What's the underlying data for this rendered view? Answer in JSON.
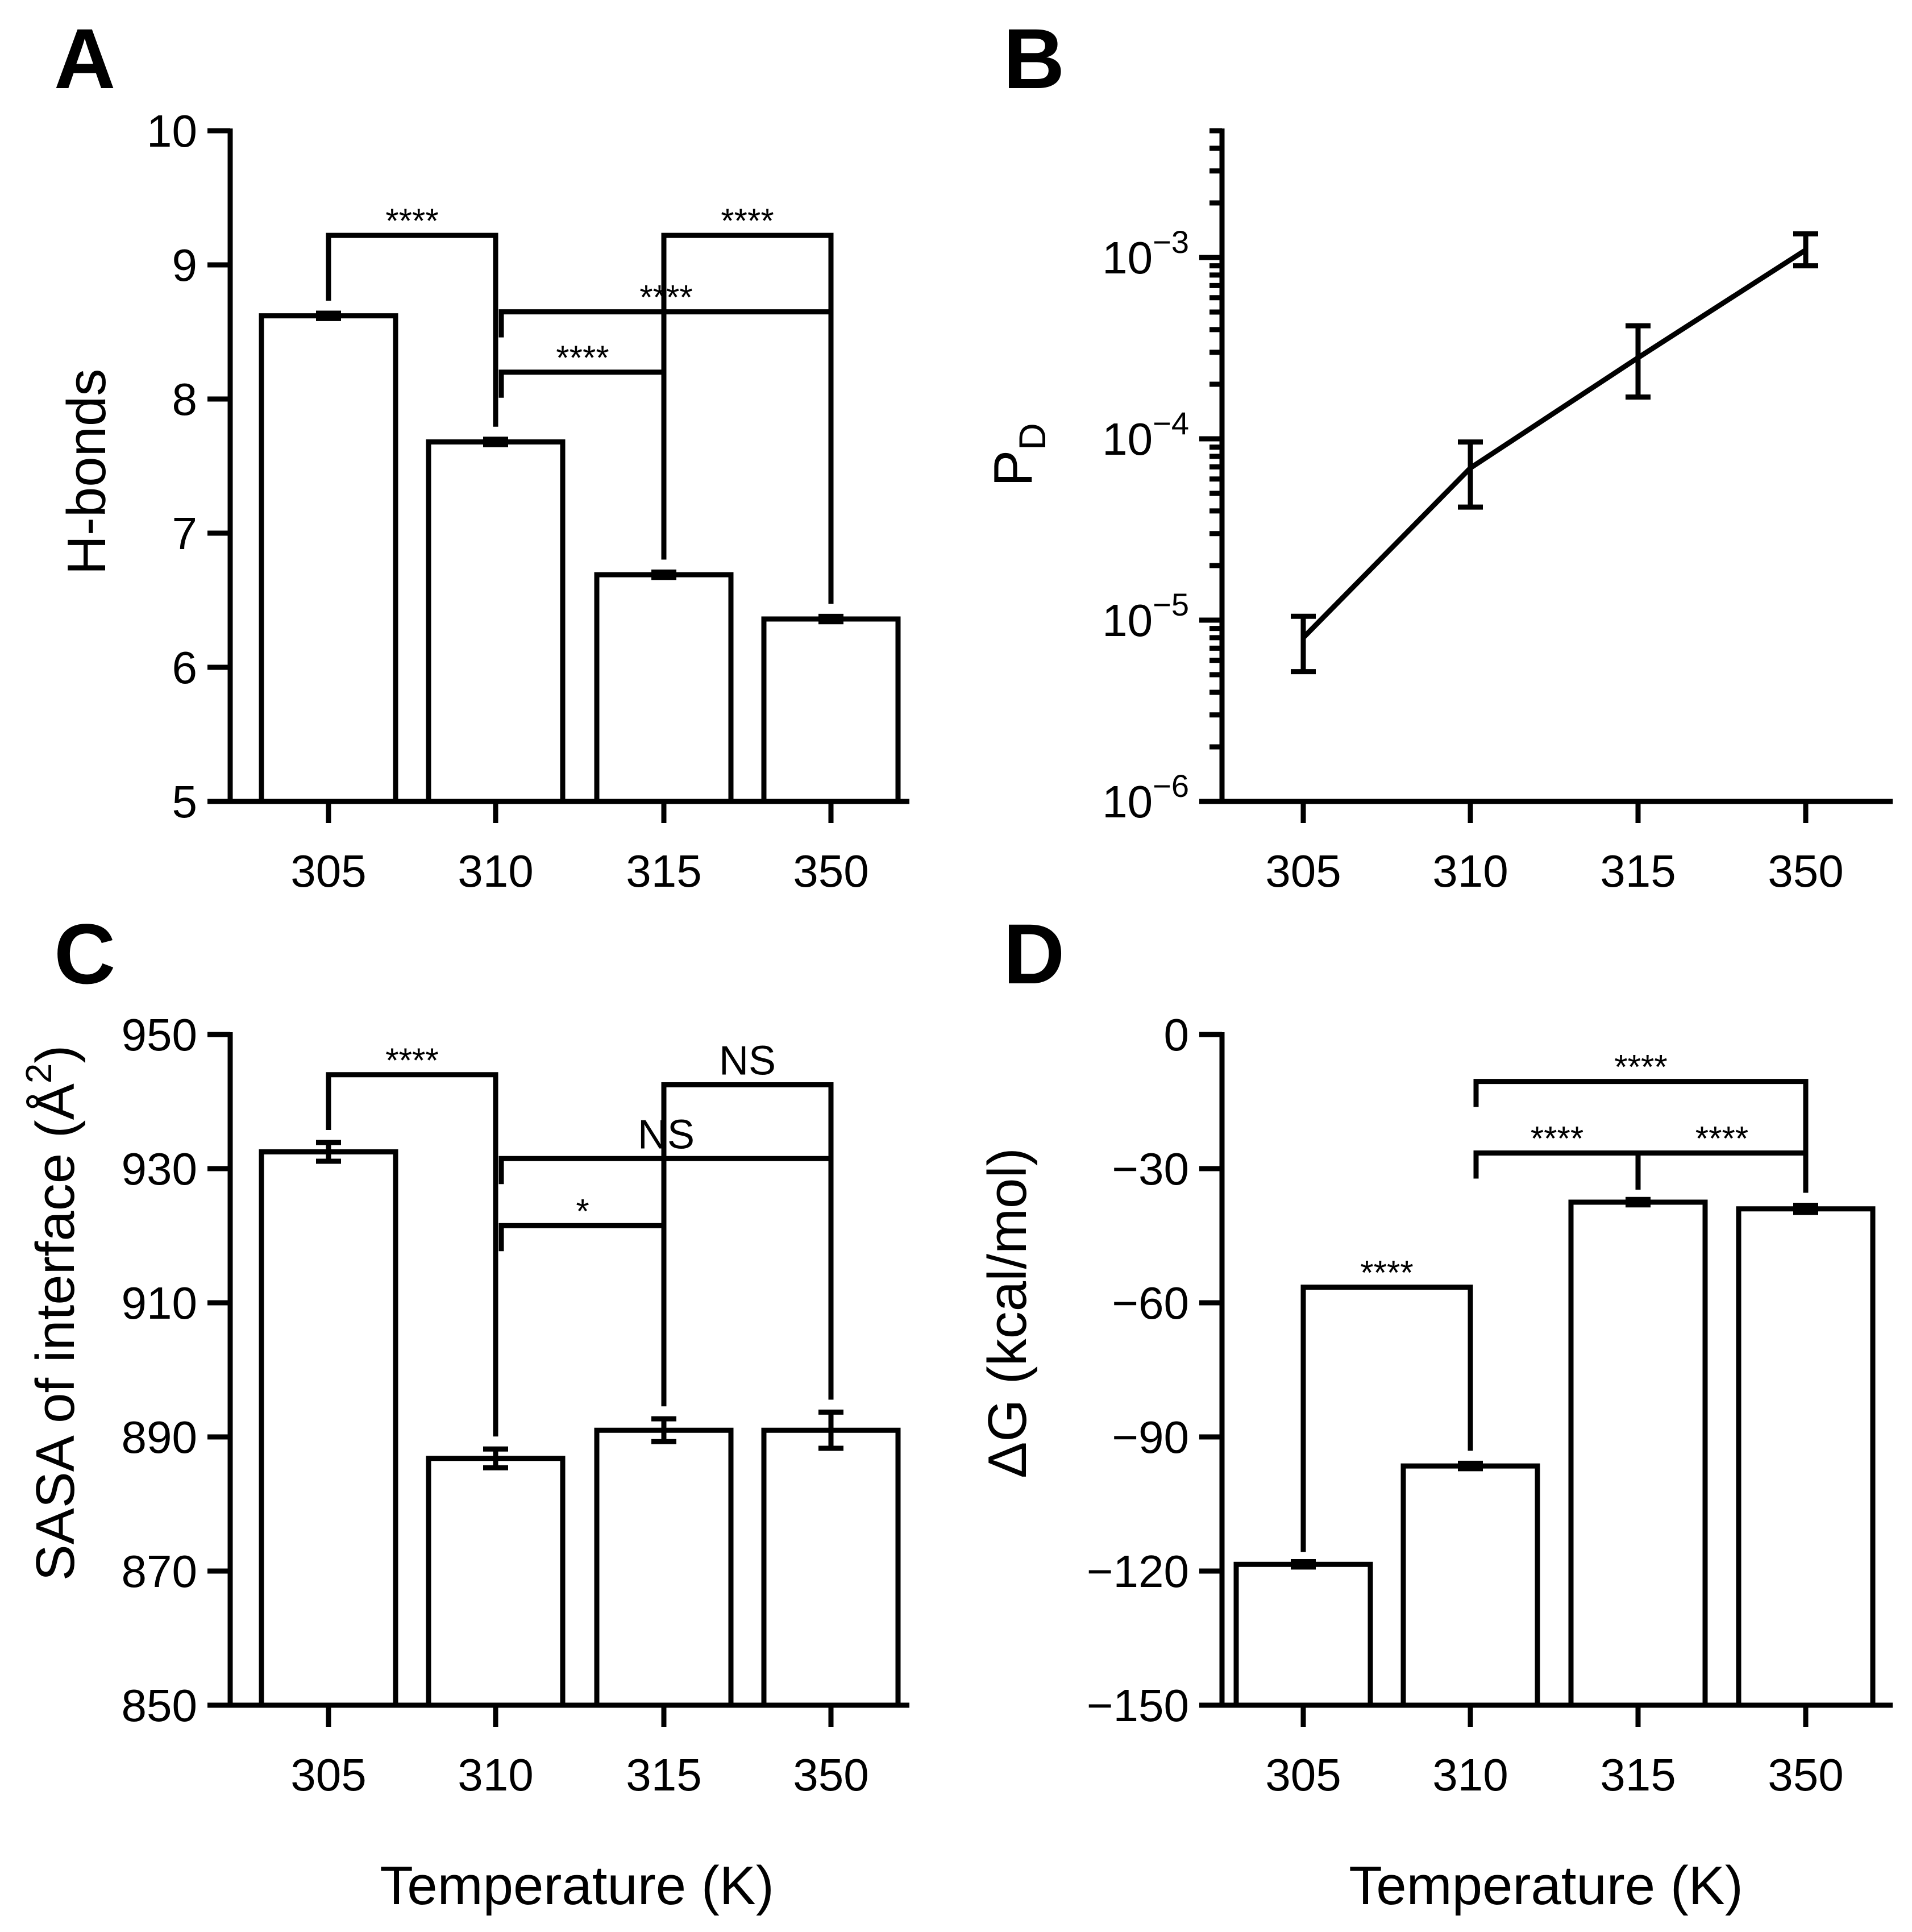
{
  "figure": {
    "xlabel": "Temperature (K)"
  },
  "chart_data": [
    {
      "panel": "A",
      "type": "bar",
      "categories": [
        "305",
        "310",
        "315",
        "350"
      ],
      "values": [
        8.62,
        7.68,
        6.69,
        6.36
      ],
      "errors": [
        0.02,
        0.02,
        0.02,
        0.02
      ],
      "ylabel": "H-bonds",
      "ylim": [
        5,
        10
      ],
      "yticks": [
        "5",
        "6",
        "7",
        "8",
        "9",
        "10"
      ],
      "significance": [
        {
          "from": 0,
          "to": 1,
          "y": 9.22,
          "label": "****"
        },
        {
          "from": 2,
          "to": 3,
          "y": 9.22,
          "label": "****"
        },
        {
          "from": 1,
          "to": 3,
          "y": 8.65,
          "label": "****"
        },
        {
          "from": 1,
          "to": 2,
          "y": 8.2,
          "label": "****"
        }
      ]
    },
    {
      "panel": "B",
      "type": "line",
      "x": [
        "305",
        "310",
        "315",
        "350"
      ],
      "values": [
        8e-06,
        6.9e-05,
        0.00028,
        0.0011
      ],
      "error_low": [
        5.2e-06,
        4.2e-05,
        0.00017,
        0.0009
      ],
      "error_high": [
        1.05e-05,
        9.6e-05,
        0.00042,
        0.00135
      ],
      "ylabel": "P",
      "ylabel_sub": "D",
      "yscale": "log",
      "ylim": [
        1e-06,
        0.005
      ],
      "yticks": [
        {
          "base": "10",
          "exp": "−6"
        },
        {
          "base": "10",
          "exp": "−5"
        },
        {
          "base": "10",
          "exp": "−4"
        },
        {
          "base": "10",
          "exp": "−3"
        }
      ]
    },
    {
      "panel": "C",
      "type": "bar",
      "categories": [
        "305",
        "310",
        "315",
        "350"
      ],
      "values": [
        932.5,
        886.8,
        891.0,
        891.0
      ],
      "errors": [
        1.4,
        1.4,
        1.7,
        2.7
      ],
      "ylabel": "SASA of interface (Å",
      "ylabel_sup": "2",
      "ylabel_close": ")",
      "ylim": [
        850,
        950
      ],
      "yticks": [
        "850",
        "870",
        "890",
        "910",
        "930",
        "950"
      ],
      "significance": [
        {
          "from": 0,
          "to": 1,
          "y": 944,
          "label": "****"
        },
        {
          "from": 2,
          "to": 3,
          "y": 942.5,
          "label": "NS"
        },
        {
          "from": 1,
          "to": 3,
          "y": 931.5,
          "label": "NS"
        },
        {
          "from": 1,
          "to": 2,
          "y": 921.5,
          "label": "*"
        }
      ]
    },
    {
      "panel": "D",
      "type": "bar",
      "categories": [
        "305",
        "310",
        "315",
        "350"
      ],
      "values": [
        -118.5,
        -96.5,
        -37.5,
        -39.0
      ],
      "errors": [
        0.6,
        0.6,
        0.6,
        0.8
      ],
      "ylabel": "ΔG (kcal/mol)",
      "ylim": [
        -150,
        0
      ],
      "yticks": [
        "−150",
        "−120",
        "−90",
        "−60",
        "−30",
        "0"
      ],
      "significance": [
        {
          "from": 0,
          "to": 1,
          "y": -56.5,
          "label": "****"
        },
        {
          "from": 1,
          "to": 3,
          "y": -10.5,
          "label": "****"
        },
        {
          "from": 1,
          "to": 2,
          "y": -26.5,
          "label": "****"
        },
        {
          "from": 2,
          "to": 3,
          "y": -26.5,
          "label": "****"
        }
      ]
    }
  ]
}
